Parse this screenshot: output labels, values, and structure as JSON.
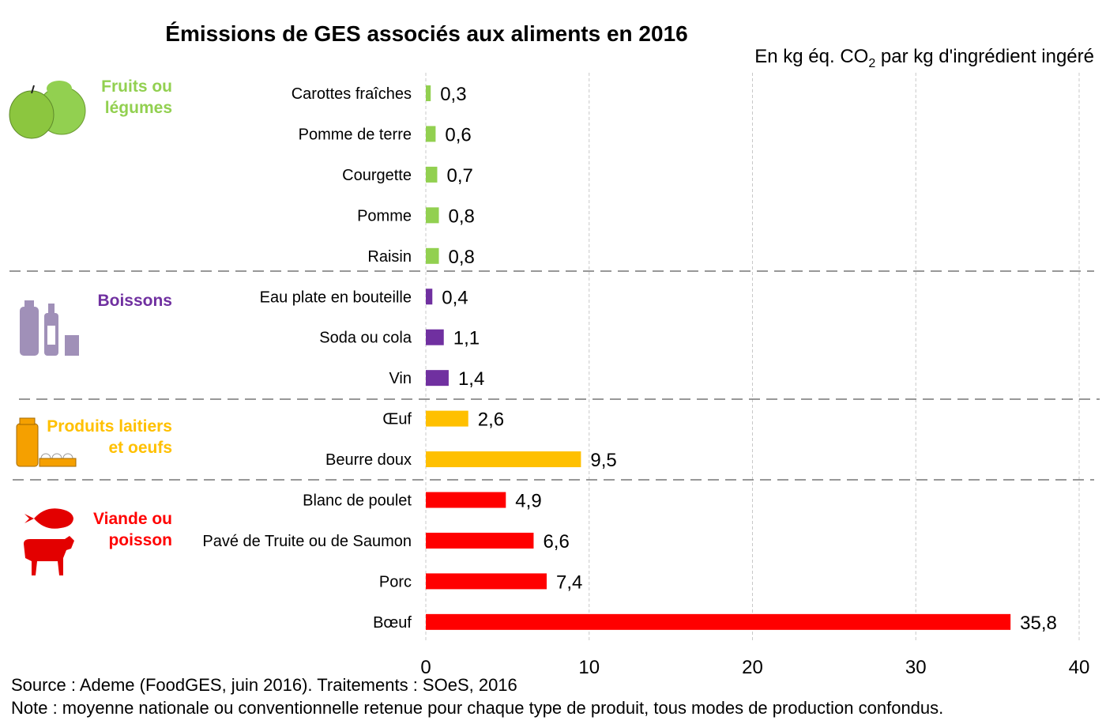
{
  "chart_data": {
    "type": "bar",
    "orientation": "horizontal",
    "title": "Émissions de GES associés aux aliments en 2016",
    "subtitle_parts": [
      "En kg éq. CO",
      "2",
      " par kg d'ingrédient ingéré"
    ],
    "xlim": [
      0,
      40
    ],
    "xticks": [
      "0",
      "10",
      "20",
      "30",
      "40"
    ],
    "grid": "vertical dashed",
    "groups": [
      {
        "name": "Fruits ou légumes",
        "lines": [
          "Fruits ou",
          "légumes"
        ],
        "color": "#92d050",
        "icon": "fruits-vegetables-icon",
        "items": [
          {
            "label": "Carottes fraîches",
            "value": 0.3,
            "text": "0,3"
          },
          {
            "label": "Pomme de terre",
            "value": 0.6,
            "text": "0,6"
          },
          {
            "label": "Courgette",
            "value": 0.7,
            "text": "0,7"
          },
          {
            "label": "Pomme",
            "value": 0.8,
            "text": "0,8"
          },
          {
            "label": "Raisin",
            "value": 0.8,
            "text": "0,8"
          }
        ]
      },
      {
        "name": "Boissons",
        "lines": [
          "Boissons"
        ],
        "color": "#7030a0",
        "icon": "bottles-icon",
        "items": [
          {
            "label": "Eau plate en bouteille",
            "value": 0.4,
            "text": "0,4"
          },
          {
            "label": "Soda ou cola",
            "value": 1.1,
            "text": "1,1"
          },
          {
            "label": "Vin",
            "value": 1.4,
            "text": "1,4"
          }
        ]
      },
      {
        "name": "Produits laitiers et oeufs",
        "lines": [
          "Produits laitiers",
          "et oeufs"
        ],
        "color": "#ffc000",
        "icon": "milk-eggs-icon",
        "items": [
          {
            "label": "Œuf",
            "value": 2.6,
            "text": "2,6"
          },
          {
            "label": "Beurre doux",
            "value": 9.5,
            "text": "9,5"
          }
        ]
      },
      {
        "name": "Viande ou poisson",
        "lines": [
          "Viande ou",
          "poisson"
        ],
        "color": "#ff0000",
        "icon": "fish-cow-icon",
        "items": [
          {
            "label": "Blanc de poulet",
            "value": 4.9,
            "text": "4,9"
          },
          {
            "label": "Pavé de Truite ou de Saumon",
            "value": 6.6,
            "text": "6,6"
          },
          {
            "label": "Porc",
            "value": 7.4,
            "text": "7,4"
          },
          {
            "label": "Bœuf",
            "value": 35.8,
            "text": "35,8"
          }
        ]
      }
    ]
  },
  "footer": {
    "source": "Source : Ademe (FoodGES, juin 2016). Traitements : SOeS, 2016",
    "note": "Note : moyenne nationale ou conventionnelle retenue pour chaque type de produit, tous modes de production confondus."
  }
}
